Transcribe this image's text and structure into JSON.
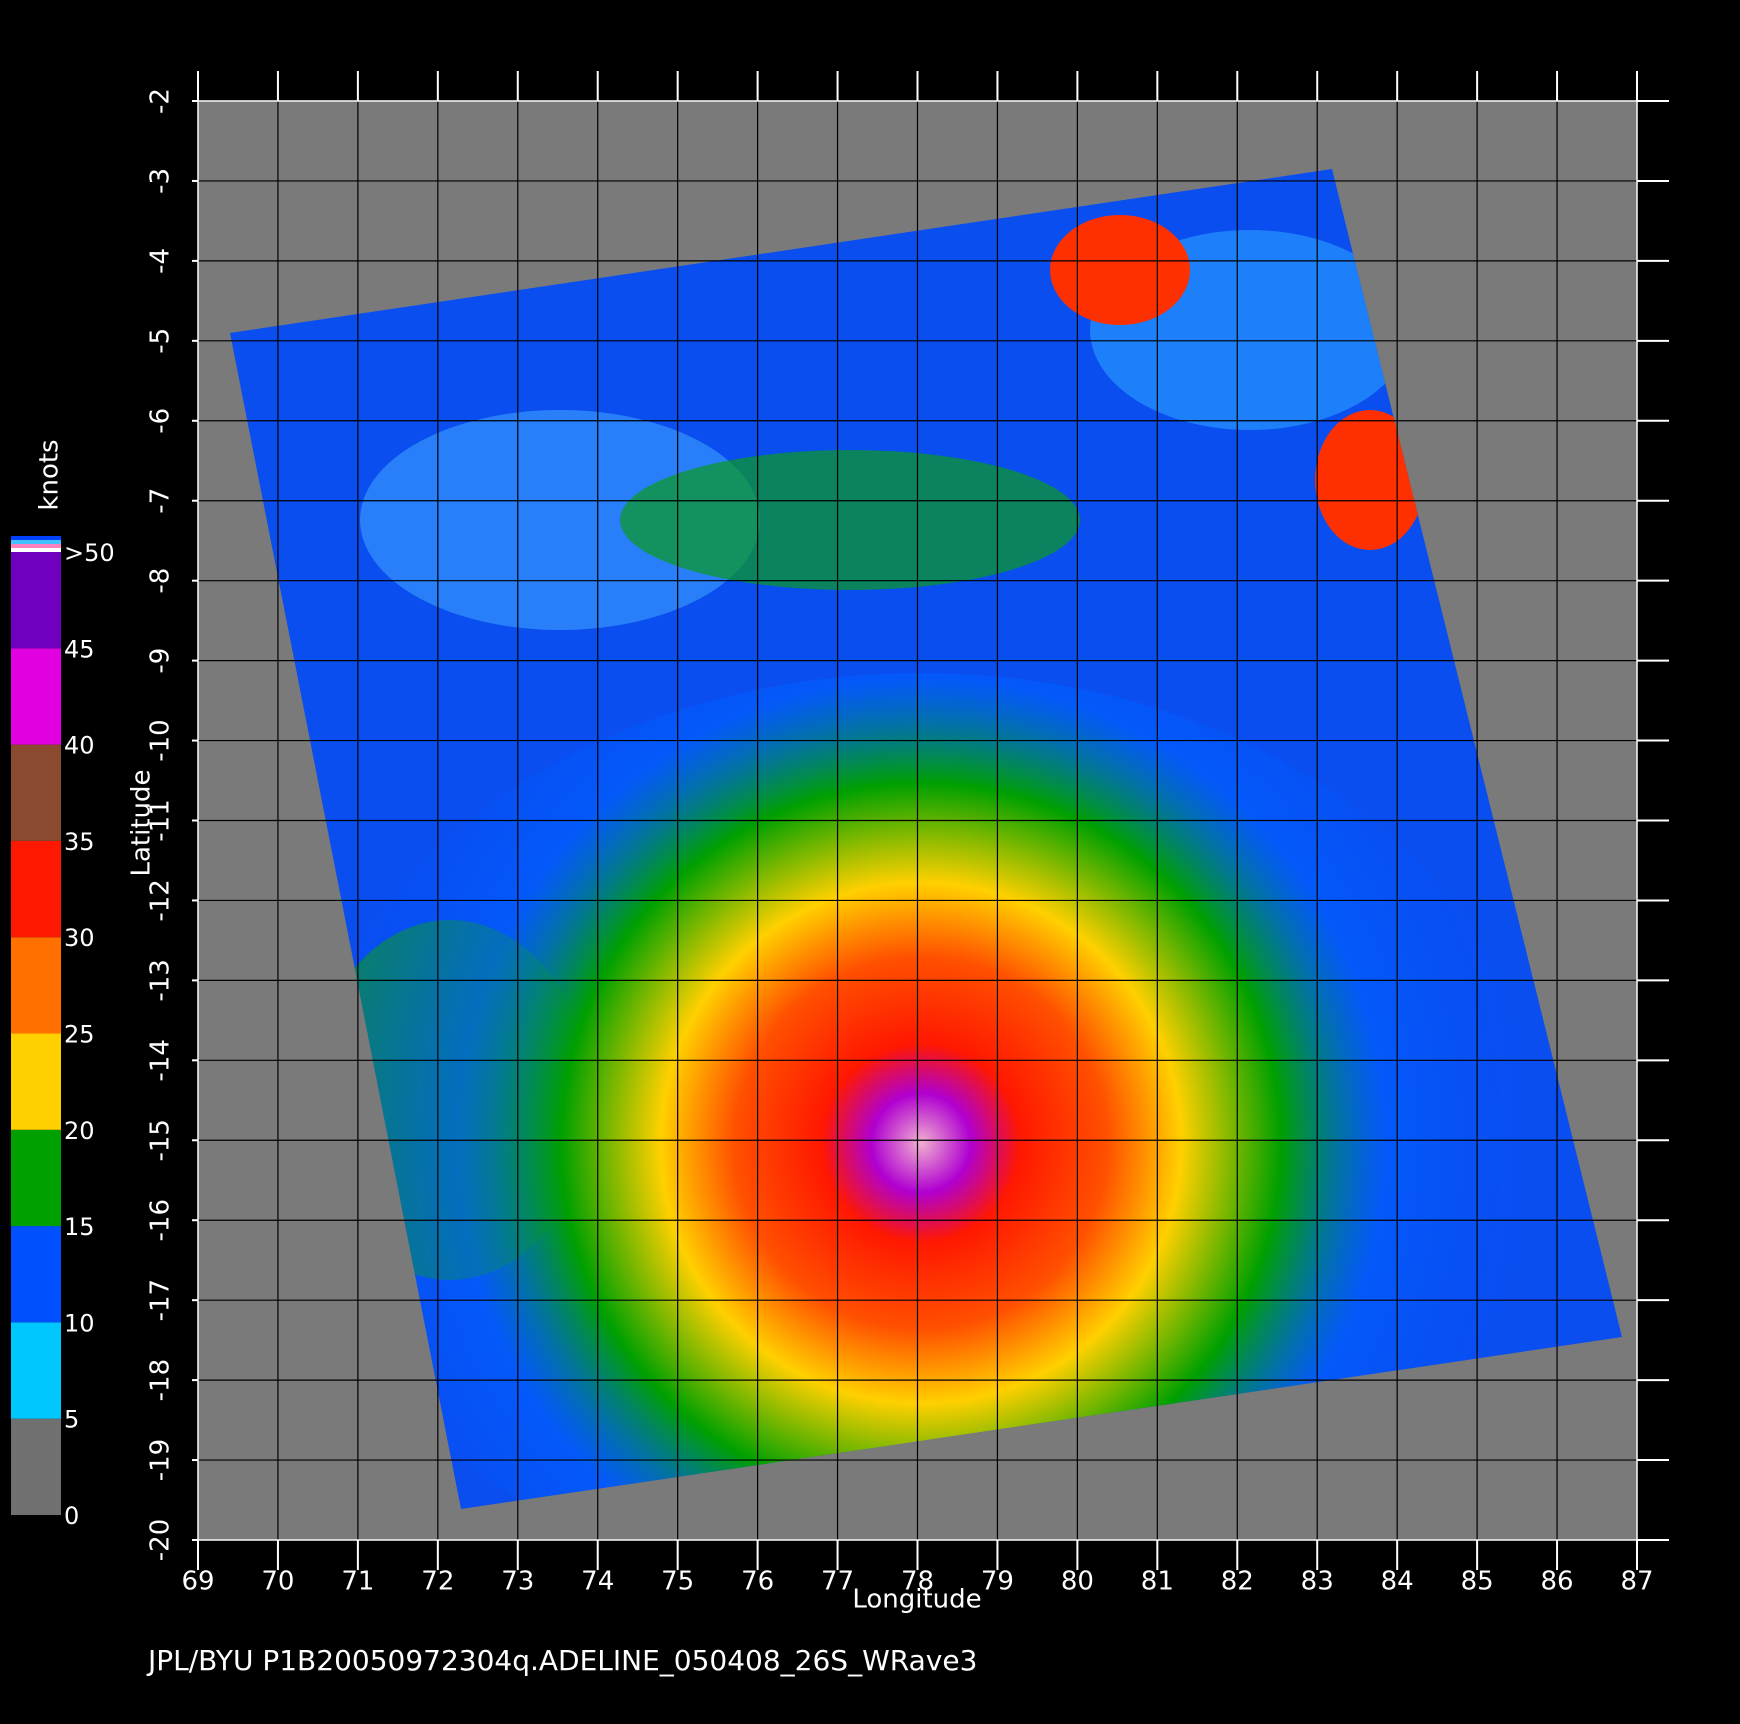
{
  "chart_data": {
    "type": "map",
    "x_label": "Longitude",
    "y_label": "Latitude",
    "xlim": [
      69,
      87
    ],
    "ylim": [
      -20,
      -2
    ],
    "xticks": [
      69,
      70,
      71,
      72,
      73,
      74,
      75,
      76,
      77,
      78,
      79,
      80,
      81,
      82,
      83,
      84,
      85,
      86,
      87
    ],
    "yticks": [
      -2,
      -3,
      -4,
      -5,
      -6,
      -7,
      -8,
      -9,
      -10,
      -11,
      -12,
      -13,
      -14,
      -15,
      -16,
      -17,
      -18,
      -19,
      -20
    ],
    "grid": true,
    "colorbar": {
      "label": "knots",
      "ticks": [
        0,
        5,
        10,
        15,
        20,
        25,
        30,
        35,
        40,
        45,
        {
          "value": 50,
          "label": ">50"
        }
      ],
      "colors": [
        "#707070",
        "#00c8ff",
        "#0050ff",
        "#00a000",
        "#ffd000",
        "#ff7000",
        "#ff1800",
        "#8a4a30",
        "#e000e0",
        "#7000c0"
      ]
    },
    "footer": "JPL/BYU  P1B20050972304q.ADELINE_050408_26S_WRave3"
  }
}
